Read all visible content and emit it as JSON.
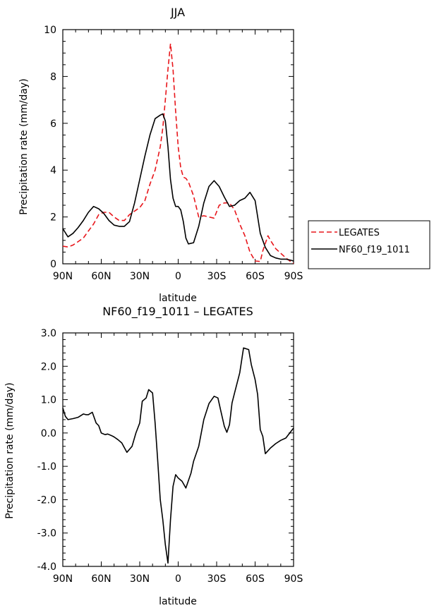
{
  "chart_data": [
    {
      "type": "line",
      "title": "JJA",
      "xlabel": "latitude",
      "ylabel": "Precipitation rate (mm/day)",
      "ylim": [
        0,
        10
      ],
      "xlim": [
        90,
        -90
      ],
      "xticks": [
        90,
        60,
        30,
        0,
        -30,
        -60,
        -90
      ],
      "xtick_labels": [
        "90N",
        "60N",
        "30N",
        "0",
        "30S",
        "60S",
        "90S"
      ],
      "yticks": [
        0,
        2,
        4,
        6,
        8,
        10
      ],
      "ytick_labels": [
        "0",
        "2",
        "4",
        "6",
        "8",
        "10"
      ],
      "legend": [
        "LEGATES",
        "NF60_f19_1011"
      ],
      "series": [
        {
          "name": "LEGATES",
          "color": "#e8161b",
          "dash": "dashed",
          "x": [
            90,
            86,
            82,
            78,
            74,
            70,
            66,
            62,
            58,
            54,
            50,
            46,
            42,
            38,
            34,
            30,
            26,
            22,
            18,
            14,
            12,
            10,
            8,
            6,
            4,
            2,
            0,
            -2,
            -4,
            -6,
            -8,
            -12,
            -16,
            -20,
            -24,
            -28,
            -32,
            -36,
            -40,
            -44,
            -48,
            -52,
            -56,
            -60,
            -64,
            -66,
            -70,
            -72,
            -76,
            -80,
            -84,
            -88,
            -90
          ],
          "values": [
            0.75,
            0.72,
            0.8,
            0.95,
            1.1,
            1.4,
            1.7,
            2.1,
            2.2,
            2.2,
            2.0,
            1.85,
            1.85,
            2.1,
            2.25,
            2.4,
            2.7,
            3.4,
            4.0,
            5.0,
            5.8,
            7.0,
            8.3,
            9.4,
            8.3,
            6.5,
            5.0,
            4.1,
            3.7,
            3.65,
            3.5,
            2.9,
            2.0,
            2.05,
            2.0,
            1.95,
            2.5,
            2.6,
            2.6,
            2.3,
            1.7,
            1.2,
            0.5,
            0.12,
            0.1,
            0.55,
            1.2,
            1.0,
            0.65,
            0.45,
            0.25,
            0.08,
            0.02
          ]
        },
        {
          "name": "NF60_f19_1011",
          "color": "#000000",
          "dash": "solid",
          "x": [
            90,
            86,
            82,
            78,
            74,
            70,
            66,
            62,
            58,
            54,
            50,
            46,
            42,
            38,
            34,
            30,
            26,
            22,
            18,
            14,
            12,
            10,
            8,
            6,
            4,
            2,
            0,
            -2,
            -4,
            -6,
            -8,
            -12,
            -16,
            -20,
            -24,
            -28,
            -32,
            -36,
            -40,
            -44,
            -48,
            -52,
            -56,
            -60,
            -64,
            -68,
            -72,
            -76,
            -80,
            -84,
            -88,
            -90
          ],
          "values": [
            1.5,
            1.15,
            1.3,
            1.55,
            1.85,
            2.2,
            2.45,
            2.35,
            2.15,
            1.85,
            1.65,
            1.6,
            1.6,
            1.8,
            2.6,
            3.6,
            4.6,
            5.5,
            6.2,
            6.35,
            6.4,
            6.1,
            5.0,
            3.6,
            2.8,
            2.45,
            2.45,
            2.3,
            1.8,
            1.1,
            0.85,
            0.9,
            1.6,
            2.6,
            3.3,
            3.55,
            3.3,
            2.85,
            2.45,
            2.5,
            2.7,
            2.8,
            3.05,
            2.7,
            1.3,
            0.7,
            0.35,
            0.25,
            0.2,
            0.2,
            0.15,
            0.12
          ]
        }
      ]
    },
    {
      "type": "line",
      "title": "NF60_f19_1011 – LEGATES",
      "xlabel": "latitude",
      "ylabel": "Precipitation rate (mm/day)",
      "ylim": [
        -4.0,
        3.0
      ],
      "xlim": [
        90,
        -90
      ],
      "xticks": [
        90,
        60,
        30,
        0,
        -30,
        -60,
        -90
      ],
      "xtick_labels": [
        "90N",
        "60N",
        "30N",
        "0",
        "30S",
        "60S",
        "90S"
      ],
      "yticks": [
        -4,
        -3,
        -2,
        -1,
        0,
        1,
        2,
        3
      ],
      "ytick_labels": [
        "-4.0",
        "-3.0",
        "-2.0",
        "-1.0",
        "0.0",
        "1.0",
        "2.0",
        "3.0"
      ],
      "series": [
        {
          "name": "NF60_f19_1011 – LEGATES",
          "color": "#000000",
          "dash": "solid",
          "x": [
            90,
            88,
            86,
            82,
            78,
            76,
            74,
            72,
            70,
            67,
            64,
            62,
            60,
            57,
            55,
            52,
            50,
            47,
            44,
            40,
            36,
            33,
            30,
            28,
            25,
            23,
            20,
            18,
            16,
            14,
            12,
            10,
            8,
            6,
            4,
            2,
            0,
            -3,
            -6,
            -10,
            -12,
            -16,
            -20,
            -24,
            -28,
            -31,
            -33,
            -36,
            -38,
            -40,
            -42,
            -44,
            -48,
            -51,
            -55,
            -57,
            -60,
            -62,
            -64,
            -66,
            -68,
            -72,
            -76,
            -80,
            -84,
            -88,
            -90
          ],
          "values": [
            0.75,
            0.5,
            0.4,
            0.43,
            0.47,
            0.52,
            0.57,
            0.55,
            0.55,
            0.62,
            0.3,
            0.22,
            0.0,
            -0.05,
            -0.03,
            -0.08,
            -0.12,
            -0.2,
            -0.3,
            -0.58,
            -0.4,
            0.0,
            0.3,
            0.95,
            1.05,
            1.3,
            1.2,
            0.3,
            -0.8,
            -2.0,
            -2.6,
            -3.35,
            -3.9,
            -2.6,
            -1.6,
            -1.25,
            -1.35,
            -1.45,
            -1.65,
            -1.2,
            -0.85,
            -0.4,
            0.4,
            0.88,
            1.1,
            1.05,
            0.7,
            0.2,
            0.02,
            0.25,
            0.9,
            1.2,
            1.8,
            2.55,
            2.5,
            2.05,
            1.6,
            1.15,
            0.1,
            -0.1,
            -0.62,
            -0.45,
            -0.32,
            -0.22,
            -0.15,
            0.05,
            0.15
          ]
        }
      ]
    }
  ]
}
